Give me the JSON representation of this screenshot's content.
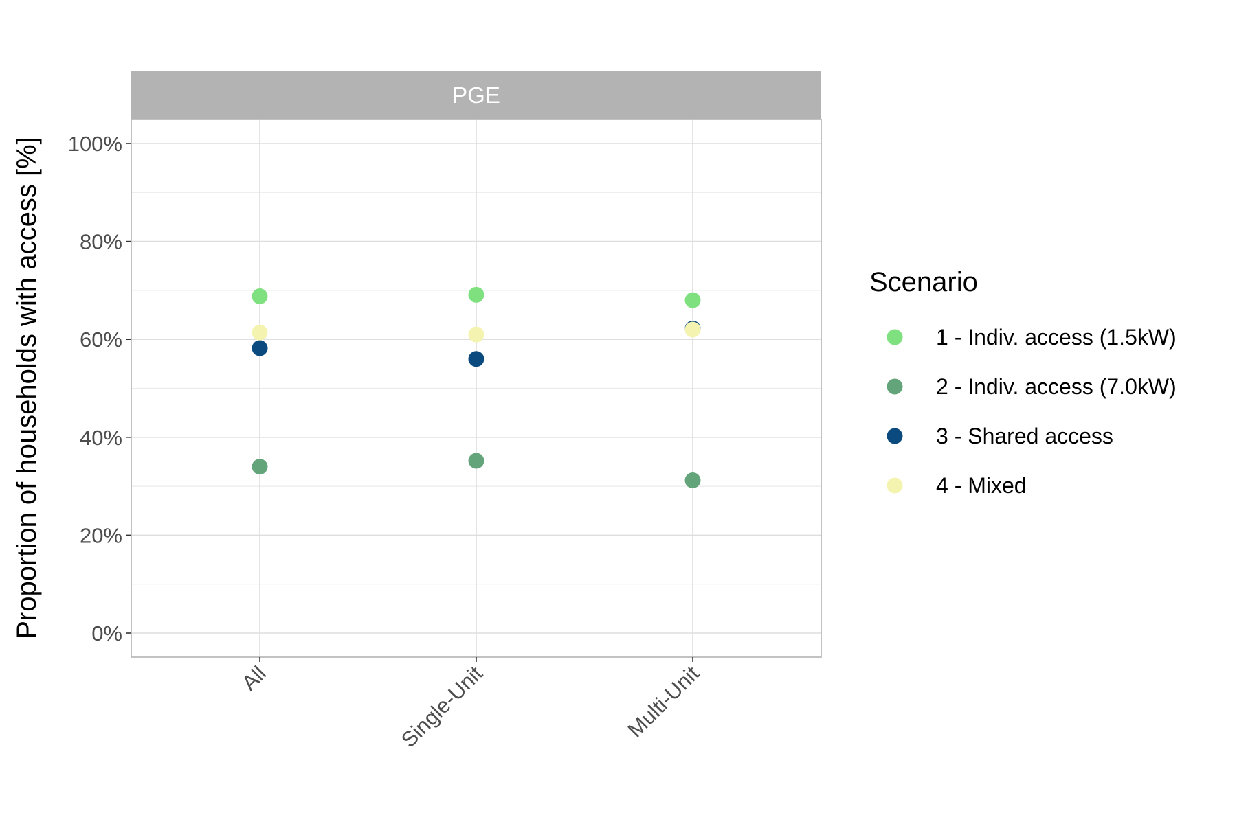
{
  "chart_data": {
    "type": "scatter",
    "facet": "PGE",
    "categories": [
      "All",
      "Single-Unit",
      "Multi-Unit"
    ],
    "ylabel": "Proportion of households with access [%]",
    "xlabel": "",
    "ylim": [
      -5,
      115
    ],
    "yticks": [
      "0%",
      "20%",
      "40%",
      "60%",
      "80%",
      "100%"
    ],
    "ytick_values": [
      0,
      20,
      40,
      60,
      80,
      100
    ],
    "grid": true,
    "legend": {
      "title": "Scenario",
      "position": "right"
    },
    "series": [
      {
        "name": "1 - Indiv. access (1.5kW)",
        "color": "#7fe07f",
        "values": [
          68.8,
          69.1,
          68.0
        ]
      },
      {
        "name": "2 - Indiv. access (7.0kW)",
        "color": "#64a47a",
        "values": [
          34.0,
          35.2,
          31.2
        ]
      },
      {
        "name": "3 - Shared access",
        "color": "#0a4a7e",
        "values": [
          58.2,
          56.0,
          62.2
        ]
      },
      {
        "name": "4 - Mixed",
        "color": "#f4f4b0",
        "values": [
          61.4,
          61.0,
          62.0
        ]
      }
    ]
  }
}
